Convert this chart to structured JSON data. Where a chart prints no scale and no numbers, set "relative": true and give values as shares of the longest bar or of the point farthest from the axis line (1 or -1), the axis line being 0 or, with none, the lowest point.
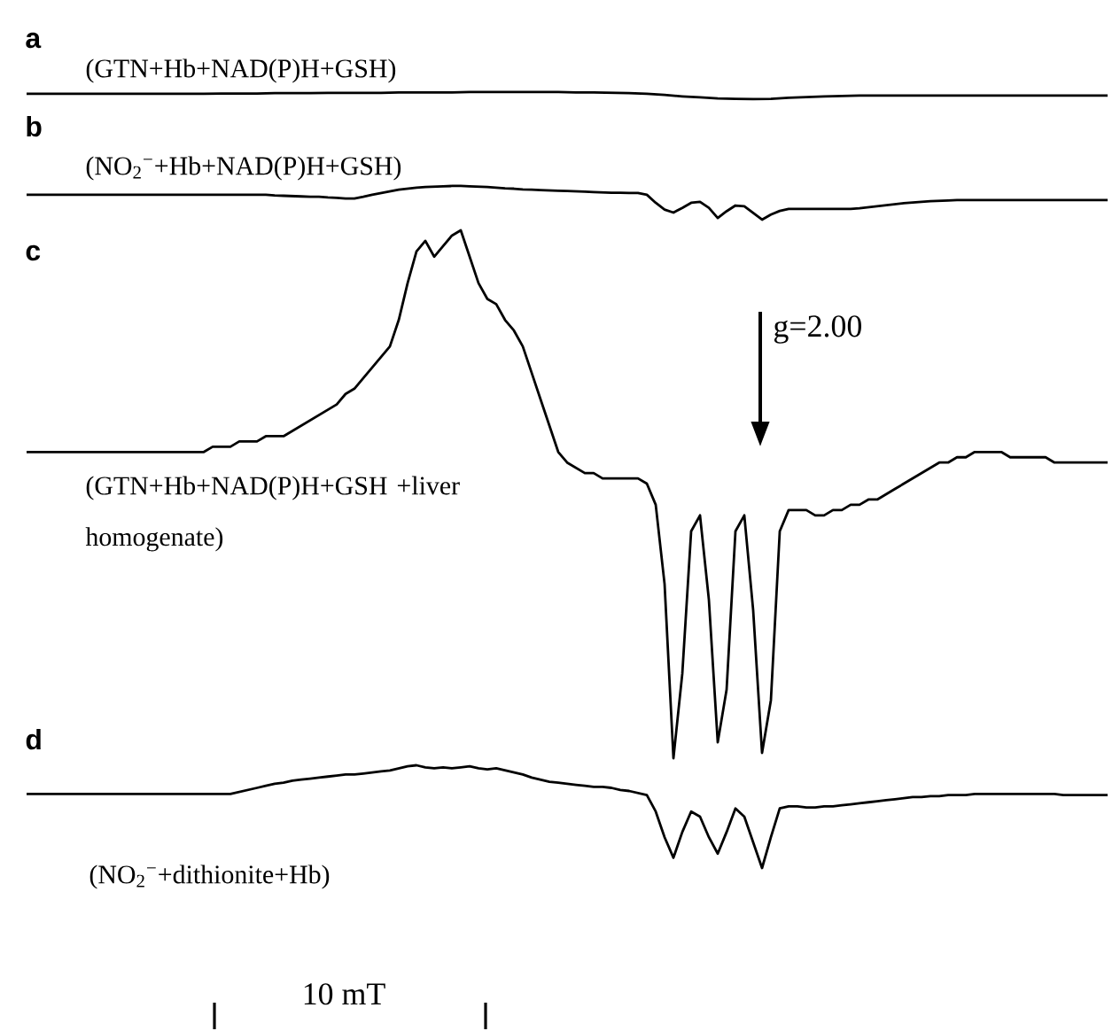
{
  "chart_data": [
    {
      "type": "line",
      "title": "a",
      "subtitle": "(GTN+Hb+NAD(P)H+GSH)",
      "relative": true,
      "categories": [
        null,
        null,
        null,
        null,
        null,
        null,
        null,
        null,
        null,
        null,
        null,
        null,
        null,
        null,
        null,
        null,
        null,
        null,
        null,
        null,
        null,
        null,
        null,
        null,
        null,
        null,
        null,
        null,
        null,
        null,
        null,
        null,
        null,
        null,
        null,
        null,
        null,
        null,
        null,
        null,
        null,
        null,
        null,
        null,
        null,
        null,
        null,
        null,
        null,
        null,
        null,
        null,
        null,
        null,
        null,
        null,
        null,
        null,
        null,
        null,
        null,
        null
      ],
      "series": [
        {
          "color": "#000000",
          "values": [
            0.75,
            0.75,
            0.75,
            0.75,
            0.75,
            0.75,
            0.75,
            0.75,
            0.75,
            0.75,
            0.75,
            0.8,
            0.8,
            0.8,
            0.85,
            0.85,
            0.85,
            0.9,
            0.9,
            0.9,
            0.9,
            0.95,
            0.95,
            0.95,
            0.95,
            1.0,
            1.0,
            1.0,
            1.0,
            1.0,
            1.0,
            0.95,
            0.95,
            0.9,
            0.85,
            0.75,
            0.6,
            0.4,
            0.25,
            0.1,
            0.05,
            0.0,
            0.05,
            0.2,
            0.3,
            0.4,
            0.45,
            0.5,
            0.5,
            0.5,
            0.5,
            0.5,
            0.5,
            0.5,
            0.5,
            0.5,
            0.5,
            0.5,
            0.5,
            0.5,
            0.5,
            0.5
          ]
        }
      ]
    },
    {
      "type": "line",
      "title": "b",
      "subtitle": "(NO$_{2}$$^{−}$+Hb+NAD(P)H+GSH)",
      "relative": true,
      "categories": [
        null,
        null,
        null,
        null,
        null,
        null,
        null,
        null,
        null,
        null,
        null,
        null,
        null,
        null,
        null,
        null,
        null,
        null,
        null,
        null,
        null,
        null,
        null,
        null,
        null,
        null,
        null,
        null,
        null,
        null,
        null,
        null,
        null,
        null,
        null,
        null,
        null,
        null,
        null,
        null,
        null,
        null,
        null,
        null,
        null,
        null,
        null,
        null,
        null,
        null,
        null,
        null,
        null,
        null,
        null,
        null,
        null,
        null,
        null,
        null,
        null,
        null,
        null,
        null,
        null,
        null,
        null,
        null,
        null,
        null,
        null,
        null,
        null,
        null,
        null,
        null,
        null,
        null,
        null,
        null,
        null,
        null,
        null,
        null,
        null,
        null,
        null,
        null,
        null,
        null,
        null,
        null,
        null,
        null,
        null,
        null,
        null,
        null,
        null,
        null,
        null,
        null,
        null,
        null,
        null,
        null,
        null,
        null,
        null,
        null,
        null,
        null,
        null,
        null,
        null,
        null,
        null,
        null,
        null,
        null,
        null,
        null,
        null
      ],
      "series": [
        {
          "color": "#000000",
          "values": [
            0.74,
            0.74,
            0.74,
            0.74,
            0.74,
            0.74,
            0.74,
            0.74,
            0.74,
            0.74,
            0.74,
            0.74,
            0.74,
            0.74,
            0.74,
            0.74,
            0.74,
            0.74,
            0.74,
            0.74,
            0.74,
            0.74,
            0.74,
            0.74,
            0.74,
            0.74,
            0.74,
            0.74,
            0.72,
            0.71,
            0.7,
            0.69,
            0.68,
            0.68,
            0.66,
            0.65,
            0.63,
            0.63,
            0.68,
            0.74,
            0.79,
            0.84,
            0.89,
            0.92,
            0.95,
            0.97,
            0.98,
            0.99,
            1.0,
            1.0,
            0.99,
            0.98,
            0.97,
            0.95,
            0.93,
            0.92,
            0.9,
            0.89,
            0.88,
            0.87,
            0.86,
            0.85,
            0.84,
            0.83,
            0.82,
            0.81,
            0.8,
            0.8,
            0.79,
            0.79,
            0.74,
            0.5,
            0.3,
            0.21,
            0.35,
            0.5,
            0.53,
            0.35,
            0.05,
            0.25,
            0.42,
            0.4,
            0.2,
            0.0,
            0.15,
            0.26,
            0.32,
            0.32,
            0.32,
            0.32,
            0.32,
            0.32,
            0.32,
            0.32,
            0.34,
            0.37,
            0.4,
            0.43,
            0.46,
            0.49,
            0.51,
            0.53,
            0.55,
            0.56,
            0.57,
            0.58,
            0.58,
            0.58,
            0.58,
            0.58,
            0.58,
            0.58,
            0.58,
            0.58,
            0.58,
            0.58,
            0.58,
            0.58,
            0.58,
            0.58,
            0.58,
            0.58,
            0.58
          ]
        }
      ]
    },
    {
      "type": "line",
      "title": "c",
      "subtitle": "(GTN+Hb+NAD(P)H+GSH +liver homogenate)",
      "relative": true,
      "annotations": [
        "g=2.00"
      ],
      "categories": [
        null,
        null,
        null,
        null,
        null,
        null,
        null,
        null,
        null,
        null,
        null,
        null,
        null,
        null,
        null,
        null,
        null,
        null,
        null,
        null,
        null,
        null,
        null,
        null,
        null,
        null,
        null,
        null,
        null,
        null,
        null,
        null,
        null,
        null,
        null,
        null,
        null,
        null,
        null,
        null,
        null,
        null,
        null,
        null,
        null,
        null,
        null,
        null,
        null,
        null,
        null,
        null,
        null,
        null,
        null,
        null,
        null,
        null,
        null,
        null,
        null,
        null,
        null,
        null,
        null,
        null,
        null,
        null,
        null,
        null,
        null,
        null,
        null,
        null,
        null,
        null,
        null,
        null,
        null,
        null,
        null,
        null,
        null,
        null,
        null,
        null,
        null,
        null,
        null,
        null,
        null,
        null,
        null,
        null,
        null,
        null,
        null,
        null,
        null,
        null,
        null,
        null,
        null,
        null,
        null,
        null,
        null,
        null,
        null,
        null,
        null,
        null,
        null,
        null,
        null,
        null,
        null,
        null,
        null,
        null,
        null,
        null,
        null
      ],
      "series": [
        {
          "color": "#000000",
          "values": [
            0.58,
            0.58,
            0.58,
            0.58,
            0.58,
            0.58,
            0.58,
            0.58,
            0.58,
            0.58,
            0.58,
            0.58,
            0.58,
            0.58,
            0.58,
            0.58,
            0.58,
            0.58,
            0.58,
            0.58,
            0.58,
            0.59,
            0.59,
            0.59,
            0.6,
            0.6,
            0.6,
            0.61,
            0.61,
            0.61,
            0.62,
            0.63,
            0.64,
            0.65,
            0.66,
            0.67,
            0.69,
            0.7,
            0.72,
            0.74,
            0.76,
            0.78,
            0.83,
            0.9,
            0.96,
            0.98,
            0.95,
            0.97,
            0.99,
            1.0,
            0.95,
            0.9,
            0.87,
            0.86,
            0.83,
            0.81,
            0.78,
            0.73,
            0.68,
            0.63,
            0.58,
            0.56,
            0.55,
            0.54,
            0.54,
            0.53,
            0.53,
            0.53,
            0.53,
            0.53,
            0.52,
            0.48,
            0.33,
            0.0,
            0.16,
            0.43,
            0.46,
            0.3,
            0.03,
            0.13,
            0.43,
            0.46,
            0.28,
            0.01,
            0.11,
            0.43,
            0.47,
            0.47,
            0.47,
            0.46,
            0.46,
            0.47,
            0.47,
            0.48,
            0.48,
            0.49,
            0.49,
            0.5,
            0.51,
            0.52,
            0.53,
            0.54,
            0.55,
            0.56,
            0.56,
            0.57,
            0.57,
            0.58,
            0.58,
            0.58,
            0.58,
            0.57,
            0.57,
            0.57,
            0.57,
            0.57,
            0.56,
            0.56,
            0.56,
            0.56,
            0.56,
            0.56,
            0.56
          ]
        }
      ]
    },
    {
      "type": "line",
      "title": "d",
      "subtitle": "(NO$_{2}$$^{−}$+dithionite+Hb)",
      "relative": true,
      "annotations": [
        "10 mT"
      ],
      "categories": [
        null,
        null,
        null,
        null,
        null,
        null,
        null,
        null,
        null,
        null,
        null,
        null,
        null,
        null,
        null,
        null,
        null,
        null,
        null,
        null,
        null,
        null,
        null,
        null,
        null,
        null,
        null,
        null,
        null,
        null,
        null,
        null,
        null,
        null,
        null,
        null,
        null,
        null,
        null,
        null,
        null,
        null,
        null,
        null,
        null,
        null,
        null,
        null,
        null,
        null,
        null,
        null,
        null,
        null,
        null,
        null,
        null,
        null,
        null,
        null,
        null,
        null,
        null,
        null,
        null,
        null,
        null,
        null,
        null,
        null,
        null,
        null,
        null,
        null,
        null,
        null,
        null,
        null,
        null,
        null,
        null,
        null,
        null,
        null,
        null,
        null,
        null,
        null,
        null,
        null,
        null,
        null,
        null,
        null,
        null,
        null,
        null,
        null,
        null,
        null,
        null,
        null,
        null,
        null,
        null,
        null,
        null,
        null,
        null,
        null,
        null,
        null,
        null,
        null,
        null,
        null,
        null,
        null,
        null,
        null,
        null,
        null,
        null
      ],
      "series": [
        {
          "color": "#000000",
          "values": [
            0.72,
            0.72,
            0.72,
            0.72,
            0.72,
            0.72,
            0.72,
            0.72,
            0.72,
            0.72,
            0.72,
            0.72,
            0.72,
            0.72,
            0.72,
            0.72,
            0.72,
            0.72,
            0.72,
            0.72,
            0.72,
            0.72,
            0.72,
            0.72,
            0.74,
            0.76,
            0.78,
            0.8,
            0.82,
            0.83,
            0.85,
            0.86,
            0.87,
            0.88,
            0.89,
            0.9,
            0.91,
            0.91,
            0.92,
            0.93,
            0.94,
            0.95,
            0.97,
            0.99,
            1.0,
            0.98,
            0.97,
            0.98,
            0.97,
            0.98,
            0.99,
            0.97,
            0.96,
            0.97,
            0.95,
            0.93,
            0.91,
            0.88,
            0.86,
            0.84,
            0.83,
            0.82,
            0.81,
            0.8,
            0.79,
            0.79,
            0.78,
            0.76,
            0.75,
            0.73,
            0.71,
            0.55,
            0.3,
            0.1,
            0.35,
            0.55,
            0.5,
            0.3,
            0.14,
            0.35,
            0.58,
            0.5,
            0.25,
            0.0,
            0.3,
            0.58,
            0.6,
            0.6,
            0.59,
            0.59,
            0.6,
            0.6,
            0.61,
            0.62,
            0.63,
            0.64,
            0.65,
            0.66,
            0.67,
            0.68,
            0.69,
            0.69,
            0.7,
            0.7,
            0.71,
            0.71,
            0.71,
            0.72,
            0.72,
            0.72,
            0.72,
            0.72,
            0.72,
            0.72,
            0.72,
            0.72,
            0.72,
            0.71,
            0.71,
            0.71,
            0.71,
            0.71,
            0.71
          ]
        }
      ]
    }
  ]
}
